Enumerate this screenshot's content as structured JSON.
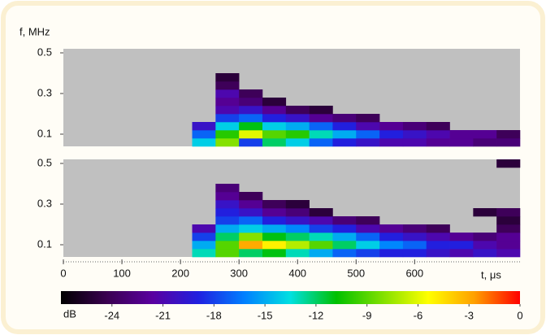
{
  "chart_data": [
    {
      "type": "heatmap",
      "y_label": "f, MHz",
      "xlim": [
        0,
        780
      ],
      "ylim": [
        0.04,
        0.52
      ],
      "yticks": [
        0.1,
        0.3,
        0.5
      ],
      "x_edges": [
        220,
        260,
        300,
        340,
        380,
        420,
        460,
        500,
        540,
        580,
        620,
        660,
        700,
        740,
        780
      ],
      "y_edges": [
        0.04,
        0.08,
        0.12,
        0.16,
        0.2,
        0.24,
        0.28,
        0.32,
        0.36,
        0.4,
        0.44,
        0.48,
        0.52
      ],
      "z": [
        [
          -14,
          -8,
          -18,
          -12,
          -14,
          -17,
          -19,
          -20,
          -21,
          -21,
          -22,
          -22,
          -23,
          -23
        ],
        [
          -17,
          -10,
          -6,
          -9,
          -10,
          -13,
          -15,
          -17,
          -19,
          -20,
          -21,
          -22,
          -22,
          -24
        ],
        [
          -20,
          -14,
          -11,
          -14,
          -15,
          -17,
          -19,
          -21,
          -22,
          -23,
          -24,
          null,
          null,
          null
        ],
        [
          null,
          -18,
          -17,
          -19,
          -20,
          -22,
          -23,
          -24,
          null,
          null,
          null,
          null,
          null,
          null
        ],
        [
          null,
          -21,
          -20,
          -22,
          -24,
          -25,
          null,
          null,
          null,
          null,
          null,
          null,
          null,
          null
        ],
        [
          null,
          -22,
          -23,
          -25,
          null,
          null,
          null,
          null,
          null,
          null,
          null,
          null,
          null,
          null
        ],
        [
          null,
          -21,
          -24,
          null,
          null,
          null,
          null,
          null,
          null,
          null,
          null,
          null,
          null,
          null
        ],
        [
          null,
          -24,
          null,
          null,
          null,
          null,
          null,
          null,
          null,
          null,
          null,
          null,
          null,
          null
        ],
        [
          null,
          -25,
          null,
          null,
          null,
          null,
          null,
          null,
          null,
          null,
          null,
          null,
          null,
          null
        ],
        [
          null,
          null,
          null,
          null,
          null,
          null,
          null,
          null,
          null,
          null,
          null,
          null,
          null,
          null
        ],
        [
          null,
          null,
          null,
          null,
          null,
          null,
          null,
          null,
          null,
          null,
          null,
          null,
          null,
          null
        ],
        [
          null,
          null,
          null,
          null,
          null,
          null,
          null,
          null,
          null,
          null,
          null,
          null,
          null,
          null
        ]
      ]
    },
    {
      "type": "heatmap",
      "x_label": "t, μs",
      "xlim": [
        0,
        780
      ],
      "xticks": [
        0,
        100,
        200,
        300,
        400,
        500,
        600
      ],
      "ylim": [
        0.04,
        0.52
      ],
      "yticks": [
        0.1,
        0.3,
        0.5
      ],
      "x_edges": [
        220,
        260,
        300,
        340,
        380,
        420,
        460,
        500,
        540,
        580,
        620,
        660,
        700,
        740,
        780
      ],
      "y_edges": [
        0.04,
        0.08,
        0.12,
        0.16,
        0.2,
        0.24,
        0.28,
        0.32,
        0.36,
        0.4,
        0.44,
        0.48,
        0.52
      ],
      "z": [
        [
          -13,
          -9,
          -12,
          -11,
          -13,
          -15,
          -17,
          -18,
          -19,
          -19,
          -20,
          -21,
          -20,
          -21
        ],
        [
          -15,
          -9,
          -3,
          -5,
          -7,
          -9,
          -12,
          -14,
          -16,
          -17,
          -19,
          -19,
          -21,
          -22
        ],
        [
          -18,
          -12,
          -8,
          -11,
          -12,
          -13,
          -15,
          -17,
          -19,
          -20,
          -21,
          -22,
          -23,
          -22
        ],
        [
          -21,
          -15,
          -14,
          -15,
          -16,
          -18,
          -19,
          -21,
          -22,
          -23,
          -24,
          null,
          null,
          -24
        ],
        [
          null,
          -18,
          -17,
          -19,
          -20,
          -21,
          -23,
          -24,
          null,
          null,
          null,
          null,
          null,
          -25
        ],
        [
          null,
          -19,
          -20,
          -22,
          -23,
          -25,
          null,
          null,
          null,
          null,
          null,
          null,
          -25,
          -24
        ],
        [
          null,
          -20,
          -22,
          -24,
          -25,
          null,
          null,
          null,
          null,
          null,
          null,
          null,
          null,
          null
        ],
        [
          null,
          -22,
          -24,
          null,
          null,
          null,
          null,
          null,
          null,
          null,
          null,
          null,
          null,
          null
        ],
        [
          null,
          -23,
          null,
          null,
          null,
          null,
          null,
          null,
          null,
          null,
          null,
          null,
          null,
          null
        ],
        [
          null,
          null,
          null,
          null,
          null,
          null,
          null,
          null,
          null,
          null,
          null,
          null,
          null,
          null
        ],
        [
          null,
          null,
          null,
          null,
          null,
          null,
          null,
          null,
          null,
          null,
          null,
          null,
          null,
          null
        ],
        [
          null,
          null,
          null,
          null,
          null,
          null,
          null,
          null,
          null,
          null,
          null,
          null,
          null,
          -25
        ]
      ]
    }
  ],
  "colorbar": {
    "label": "dB",
    "lim": [
      -27,
      0
    ],
    "ticks": [
      -24,
      -21,
      -18,
      -15,
      -12,
      -9,
      -6,
      -3,
      0
    ],
    "colors": [
      "#000000",
      "#3a0050",
      "#5a00a0",
      "#2020e0",
      "#0080ff",
      "#00e0e0",
      "#00c000",
      "#80e000",
      "#ffff00",
      "#ffa000",
      "#ff0000"
    ],
    "missing_color": "#c0c0c0"
  }
}
